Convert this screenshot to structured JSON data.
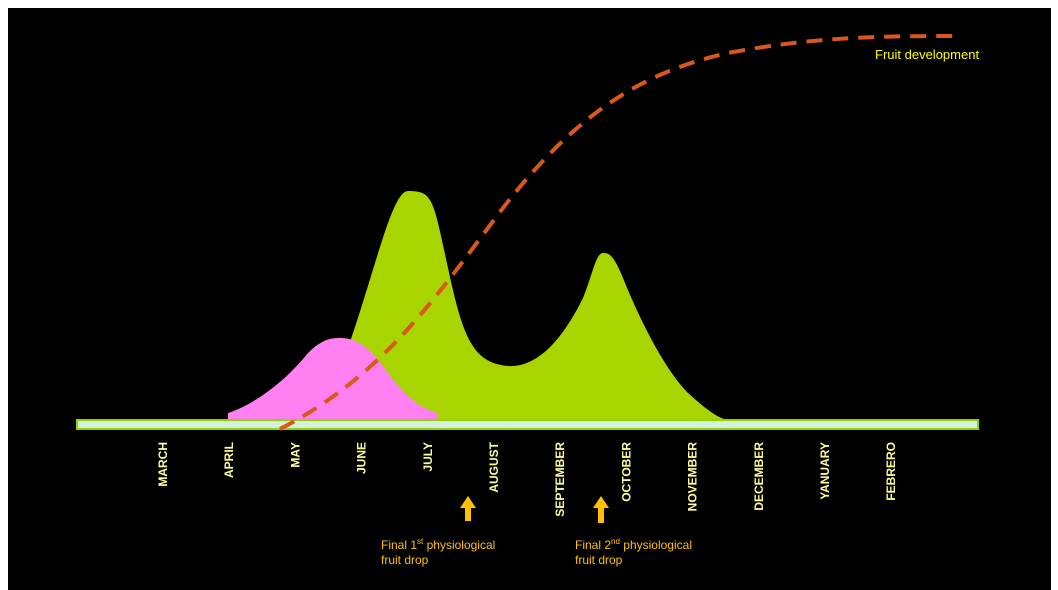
{
  "diagram": {
    "months": [
      "MARCH",
      "APRIL",
      "MAY",
      "JUNE",
      "JULY",
      "AUGUST",
      "SEPTEMBER",
      "OCTOBER",
      "NOVEMBER",
      "DECEMBER",
      "YANUARY",
      "FEBRERO"
    ],
    "curve_label": "Fruit development",
    "drops": [
      {
        "line1_prefix": "Final 1",
        "sup": "st",
        "line1_suffix": " physiological",
        "line2": "fruit drop"
      },
      {
        "line1_prefix": "Final 2",
        "sup": "nd",
        "line1_suffix": " physiological",
        "line2": "fruit drop"
      }
    ],
    "colors": {
      "background": "#000000",
      "green_area": "#a8d400",
      "pink_area": "#ff80f0",
      "curve": "#d9581a",
      "timeline_fill": "#d6f0e0",
      "timeline_border": "#8fd400",
      "arrow": "#ffc000",
      "month_text": "#ffff99"
    }
  }
}
